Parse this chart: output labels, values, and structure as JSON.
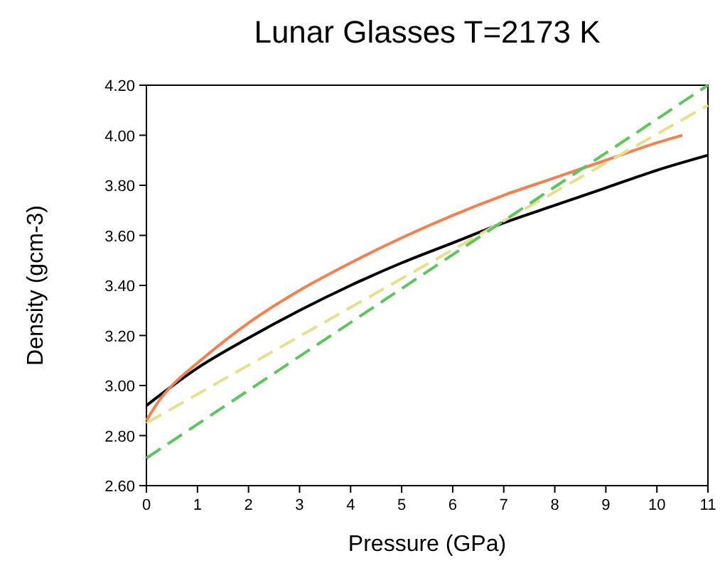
{
  "chart_data": {
    "type": "line",
    "title": "Lunar Glasses T=2173 K",
    "xlabel": "Pressure (GPa)",
    "ylabel": "Density (gcm-3)",
    "xlim": [
      0,
      11
    ],
    "xticks": [
      0,
      1,
      2,
      3,
      4,
      5,
      6,
      7,
      8,
      9,
      10,
      11
    ],
    "ylim": [
      2.6,
      4.2
    ],
    "yticks": [
      {
        "value": 2.6,
        "label": "2.60"
      },
      {
        "value": 2.8,
        "label": "2.80"
      },
      {
        "value": 3.0,
        "label": "3.00"
      },
      {
        "value": 3.2,
        "label": "3.20"
      },
      {
        "value": 3.4,
        "label": "3.40"
      },
      {
        "value": 3.6,
        "label": "3.60"
      },
      {
        "value": 3.8,
        "label": "3.80"
      },
      {
        "value": 4.0,
        "label": "4.00"
      },
      {
        "value": 4.2,
        "label": "4.20"
      }
    ],
    "marker": "none",
    "series": [
      {
        "color": "#000000",
        "line_style": "solid",
        "x": [
          0,
          1,
          2,
          3,
          4,
          5,
          6,
          7,
          8,
          9,
          10,
          11
        ],
        "values": [
          2.92,
          3.07,
          3.19,
          3.3,
          3.4,
          3.49,
          3.57,
          3.65,
          3.72,
          3.79,
          3.86,
          3.92
        ]
      },
      {
        "color": "#f47f4f",
        "line_style": "solid",
        "x": [
          0,
          0.25,
          0.5,
          1,
          2,
          3,
          4,
          5,
          6,
          7,
          8,
          9,
          10,
          10.5
        ],
        "values": [
          2.86,
          2.94,
          3.0,
          3.09,
          3.25,
          3.38,
          3.49,
          3.59,
          3.68,
          3.76,
          3.83,
          3.9,
          3.97,
          4.0
        ]
      },
      {
        "color": "#e6e08a",
        "line_style": "dashed",
        "x": [
          0,
          11
        ],
        "values": [
          2.85,
          4.12
        ]
      },
      {
        "color": "#5cc65c",
        "line_style": "dashed",
        "x": [
          0,
          11
        ],
        "values": [
          2.71,
          4.2
        ]
      }
    ]
  }
}
